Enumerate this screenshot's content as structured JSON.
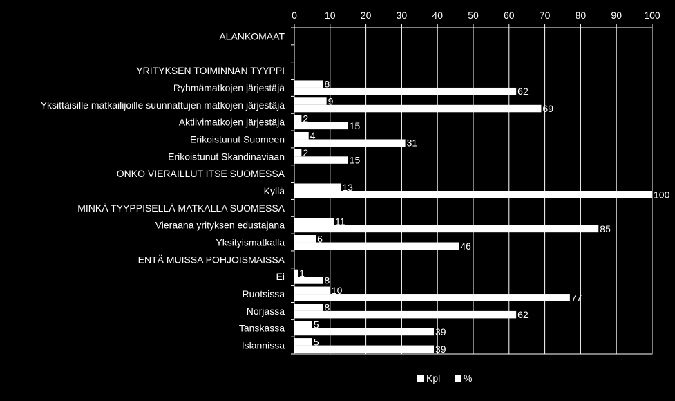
{
  "chart_data": {
    "type": "bar",
    "orientation": "horizontal",
    "categories": [
      "ALANKOMAAT",
      "",
      "YRITYKSEN TOIMINNAN TYYPPI",
      "Ryhmämatkojen järjestäjä",
      "Yksittäisille matkailijoille suunnattujen matkojen järjestäjä",
      "Aktiivimatkojen järjestäjä",
      "Erikoistunut Suomeen",
      "Erikoistunut Skandinaviaan",
      "ONKO VIERAILLUT ITSE SUOMESSA",
      "Kyllä",
      "MINKÄ TYYPPISELLÄ MATKALLA SUOMESSA",
      "Vieraana yrityksen edustajana",
      "Yksityismatkalla",
      "ENTÄ MUISSA POHJOISMAISSA",
      "Ei",
      "Ruotsissa",
      "Norjassa",
      "Tanskassa",
      "Islannissa"
    ],
    "series": [
      {
        "name": "Kpl",
        "values": [
          null,
          null,
          null,
          8,
          9,
          2,
          4,
          2,
          null,
          13,
          null,
          11,
          6,
          null,
          1,
          10,
          8,
          5,
          5
        ],
        "labels": [
          "",
          "",
          "",
          "8",
          "9",
          "2",
          "4",
          "2",
          "",
          "13",
          "",
          "11",
          "6",
          "",
          "1",
          "10",
          "8",
          "5",
          "5"
        ]
      },
      {
        "name": "%",
        "values": [
          null,
          null,
          null,
          62,
          69,
          15,
          31,
          15,
          null,
          100,
          null,
          85,
          46,
          null,
          8,
          77,
          62,
          39,
          39
        ],
        "labels": [
          "",
          "",
          "",
          "62",
          "69",
          "15",
          "31",
          "15",
          "",
          "100",
          "",
          "85",
          "46",
          "",
          "8",
          "77",
          "62",
          "39",
          "39"
        ]
      }
    ],
    "xlim": [
      0,
      100
    ],
    "xticks": [
      0,
      10,
      20,
      30,
      40,
      50,
      60,
      70,
      80,
      90,
      100
    ],
    "xtick_labels": [
      "0",
      "10",
      "20",
      "30",
      "40",
      "50",
      "60",
      "70",
      "80",
      "90",
      "100"
    ],
    "x_axis_position": "top",
    "grid": true,
    "legend_position": "bottom",
    "colors": {
      "background": "#000000",
      "bar": "#ffffff",
      "text": "#ffffff",
      "grid": "#ffffff"
    }
  }
}
